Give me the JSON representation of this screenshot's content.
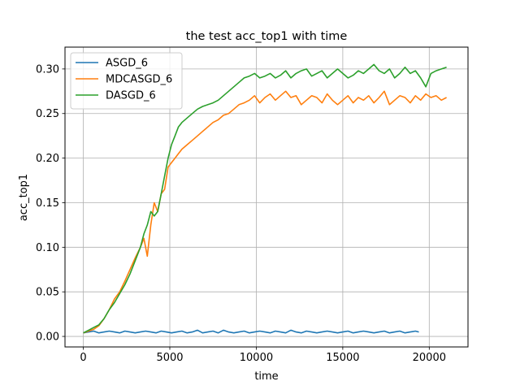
{
  "chart_data": {
    "type": "line",
    "title": "the test acc_top1 with time",
    "xlabel": "time",
    "ylabel": "acc_top1",
    "xlim": [
      -1060,
      22240
    ],
    "ylim": [
      -0.0118,
      0.3245
    ],
    "grid": true,
    "legend_placement": "top-left",
    "x_ticks": [
      {
        "value": 0,
        "label": "0"
      },
      {
        "value": 5000,
        "label": "5000"
      },
      {
        "value": 10000,
        "label": "10000"
      },
      {
        "value": 15000,
        "label": "15000"
      },
      {
        "value": 20000,
        "label": "20000"
      }
    ],
    "y_ticks": [
      {
        "value": 0.0,
        "label": "0.00"
      },
      {
        "value": 0.05,
        "label": "0.05"
      },
      {
        "value": 0.1,
        "label": "0.10"
      },
      {
        "value": 0.15,
        "label": "0.15"
      },
      {
        "value": 0.2,
        "label": "0.20"
      },
      {
        "value": 0.25,
        "label": "0.25"
      },
      {
        "value": 0.3,
        "label": "0.30"
      }
    ],
    "series": [
      {
        "name": "ASGD_6",
        "color": "#1f77b4",
        "x": [
          0,
          300,
          600,
          900,
          1200,
          1500,
          1800,
          2100,
          2400,
          2700,
          3000,
          3300,
          3600,
          3900,
          4200,
          4500,
          4800,
          5100,
          5400,
          5700,
          6000,
          6300,
          6600,
          6900,
          7200,
          7500,
          7800,
          8100,
          8400,
          8700,
          9000,
          9300,
          9600,
          9900,
          10200,
          10500,
          10800,
          11100,
          11400,
          11700,
          12000,
          12300,
          12600,
          12900,
          13200,
          13500,
          13800,
          14100,
          14400,
          14700,
          15000,
          15300,
          15600,
          15900,
          16200,
          16500,
          16800,
          17100,
          17400,
          17700,
          18000,
          18300,
          18600,
          18900,
          19200,
          19400
        ],
        "values": [
          0.004,
          0.005,
          0.006,
          0.004,
          0.005,
          0.006,
          0.005,
          0.004,
          0.006,
          0.005,
          0.004,
          0.005,
          0.006,
          0.005,
          0.004,
          0.006,
          0.005,
          0.004,
          0.005,
          0.006,
          0.004,
          0.005,
          0.007,
          0.004,
          0.005,
          0.006,
          0.004,
          0.007,
          0.005,
          0.004,
          0.005,
          0.006,
          0.004,
          0.005,
          0.006,
          0.005,
          0.004,
          0.006,
          0.005,
          0.004,
          0.007,
          0.005,
          0.004,
          0.006,
          0.005,
          0.004,
          0.005,
          0.006,
          0.005,
          0.004,
          0.005,
          0.006,
          0.004,
          0.005,
          0.006,
          0.005,
          0.004,
          0.005,
          0.006,
          0.004,
          0.005,
          0.006,
          0.004,
          0.005,
          0.006,
          0.005
        ]
      },
      {
        "name": "MDCASGD_6",
        "color": "#ff7f0e",
        "x": [
          0,
          300,
          600,
          900,
          1200,
          1500,
          1800,
          2100,
          2400,
          2700,
          3000,
          3300,
          3500,
          3700,
          3900,
          4100,
          4300,
          4500,
          4700,
          4900,
          5100,
          5300,
          5500,
          5700,
          6000,
          6300,
          6600,
          6900,
          7200,
          7500,
          7800,
          8100,
          8400,
          8700,
          9000,
          9300,
          9600,
          9900,
          10200,
          10500,
          10800,
          11100,
          11400,
          11700,
          12000,
          12300,
          12600,
          12900,
          13200,
          13500,
          13800,
          14100,
          14400,
          14700,
          15000,
          15300,
          15600,
          15900,
          16200,
          16500,
          16800,
          17100,
          17400,
          17700,
          18000,
          18300,
          18600,
          18900,
          19200,
          19500,
          19800,
          20100,
          20400,
          20700,
          21000
        ],
        "values": [
          0.004,
          0.006,
          0.008,
          0.012,
          0.02,
          0.03,
          0.042,
          0.05,
          0.062,
          0.075,
          0.088,
          0.1,
          0.11,
          0.09,
          0.125,
          0.15,
          0.14,
          0.16,
          0.165,
          0.19,
          0.195,
          0.2,
          0.205,
          0.21,
          0.215,
          0.22,
          0.225,
          0.23,
          0.235,
          0.24,
          0.243,
          0.248,
          0.25,
          0.255,
          0.26,
          0.262,
          0.265,
          0.27,
          0.262,
          0.268,
          0.272,
          0.265,
          0.27,
          0.275,
          0.268,
          0.27,
          0.26,
          0.265,
          0.27,
          0.268,
          0.262,
          0.272,
          0.265,
          0.26,
          0.265,
          0.27,
          0.262,
          0.268,
          0.265,
          0.27,
          0.262,
          0.268,
          0.275,
          0.26,
          0.265,
          0.27,
          0.268,
          0.262,
          0.27,
          0.265,
          0.272,
          0.268,
          0.27,
          0.265,
          0.268
        ]
      },
      {
        "name": "DASGD_6",
        "color": "#2ca02c",
        "x": [
          0,
          300,
          600,
          900,
          1200,
          1500,
          1800,
          2100,
          2400,
          2700,
          3000,
          3300,
          3500,
          3700,
          3900,
          4100,
          4300,
          4500,
          4700,
          4900,
          5100,
          5300,
          5500,
          5700,
          6000,
          6300,
          6600,
          6900,
          7200,
          7500,
          7800,
          8100,
          8400,
          8700,
          9000,
          9300,
          9600,
          9900,
          10200,
          10500,
          10800,
          11100,
          11400,
          11700,
          12000,
          12300,
          12600,
          12900,
          13200,
          13500,
          13800,
          14100,
          14400,
          14700,
          15000,
          15300,
          15600,
          15900,
          16200,
          16500,
          16800,
          17100,
          17400,
          17700,
          18000,
          18300,
          18600,
          18900,
          19200,
          19500,
          19800,
          20100,
          20400,
          20700,
          21000
        ],
        "values": [
          0.004,
          0.007,
          0.01,
          0.013,
          0.02,
          0.03,
          0.038,
          0.048,
          0.058,
          0.07,
          0.085,
          0.1,
          0.115,
          0.125,
          0.14,
          0.135,
          0.14,
          0.16,
          0.18,
          0.2,
          0.215,
          0.225,
          0.235,
          0.24,
          0.245,
          0.25,
          0.255,
          0.258,
          0.26,
          0.262,
          0.265,
          0.27,
          0.275,
          0.28,
          0.285,
          0.29,
          0.292,
          0.295,
          0.29,
          0.292,
          0.295,
          0.29,
          0.293,
          0.298,
          0.29,
          0.295,
          0.298,
          0.3,
          0.292,
          0.295,
          0.298,
          0.29,
          0.295,
          0.3,
          0.295,
          0.29,
          0.293,
          0.298,
          0.295,
          0.3,
          0.305,
          0.298,
          0.295,
          0.3,
          0.29,
          0.295,
          0.302,
          0.295,
          0.298,
          0.29,
          0.28,
          0.295,
          0.298,
          0.3,
          0.302
        ]
      }
    ]
  }
}
